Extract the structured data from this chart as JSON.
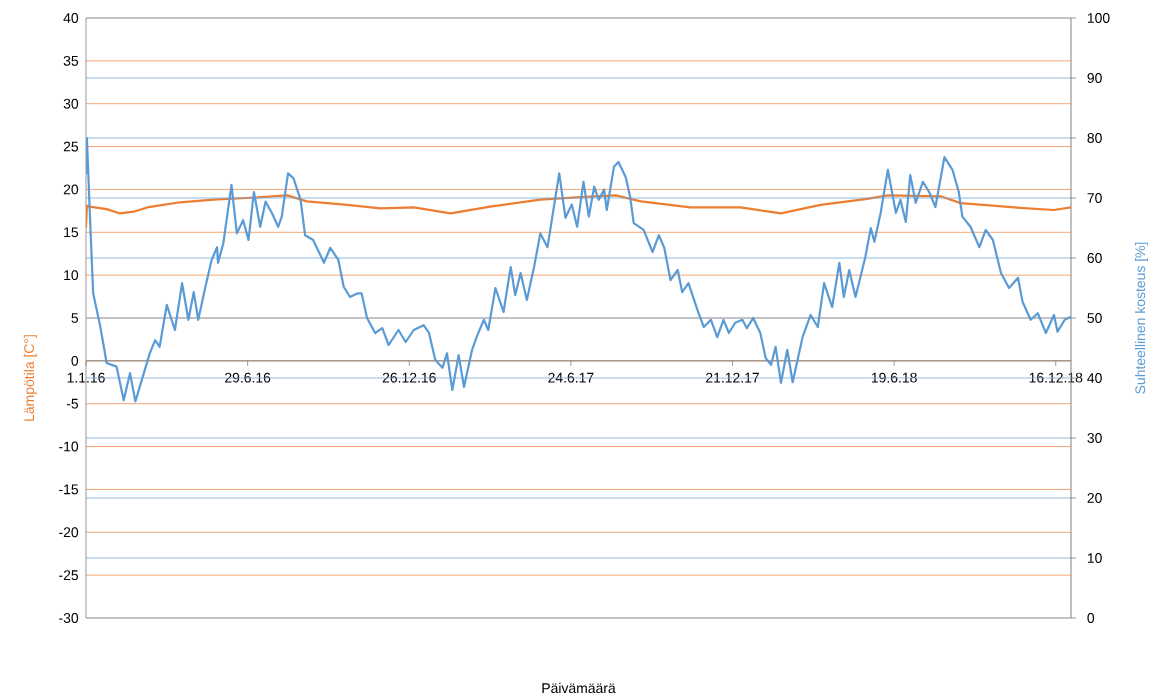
{
  "chart_data": {
    "type": "line",
    "xlabel": "Päivämäärä",
    "ylabel": "Lämpötila [C°]",
    "y2label": "Suhteellinen kosteus [%]",
    "xlim": [
      "2016-01-01",
      "2019-01-02"
    ],
    "xticks": [
      {
        "value": "2016-01-01",
        "label": "1.1.16"
      },
      {
        "value": "2016-06-29",
        "label": "29.6.16"
      },
      {
        "value": "2016-12-26",
        "label": "26.12.16"
      },
      {
        "value": "2017-06-24",
        "label": "24.6.17"
      },
      {
        "value": "2017-12-21",
        "label": "21.12.17"
      },
      {
        "value": "2018-06-19",
        "label": "19.6.18"
      },
      {
        "value": "2018-12-16",
        "label": "16.12.18"
      }
    ],
    "ylim": [
      -30,
      40
    ],
    "yticks": [
      -30,
      -25,
      -20,
      -15,
      -10,
      -5,
      0,
      5,
      10,
      15,
      20,
      25,
      30,
      35,
      40
    ],
    "y2lim": [
      0,
      100
    ],
    "y2ticks": [
      0,
      10,
      20,
      30,
      40,
      50,
      60,
      70,
      80,
      90,
      100
    ],
    "grid": true,
    "series": [
      {
        "color": "#ed7d31",
        "x": [
          "2016-01-01",
          "2016-01-02",
          "2016-01-05",
          "2016-01-24",
          "2016-02-08",
          "2016-02-23",
          "2016-03-09",
          "2016-04-15",
          "2016-05-22",
          "2016-06-28",
          "2016-08-12",
          "2016-09-03",
          "2016-10-18",
          "2016-11-24",
          "2016-12-31",
          "2017-02-10",
          "2017-03-26",
          "2017-05-21",
          "2017-07-05",
          "2017-08-13",
          "2017-09-10",
          "2017-11-04",
          "2017-12-30",
          "2018-02-13",
          "2018-03-29",
          "2018-05-20",
          "2018-06-12",
          "2018-08-10",
          "2018-09-01",
          "2018-10-31",
          "2018-12-14",
          "2019-01-02"
        ],
        "values": [
          15.5,
          18.1,
          18.0,
          17.7,
          17.2,
          17.4,
          17.9,
          18.5,
          18.8,
          19.0,
          19.3,
          18.6,
          18.2,
          17.8,
          17.9,
          17.2,
          18.0,
          18.8,
          19.1,
          19.3,
          18.6,
          17.9,
          17.9,
          17.2,
          18.2,
          18.9,
          19.3,
          19.2,
          18.4,
          17.9,
          17.6,
          17.9
        ]
      },
      {
        "color": "#5b9bd5",
        "axis": "y2",
        "x": [
          "2016-01-01",
          "2016-01-02",
          "2016-01-06",
          "2016-01-09",
          "2016-01-17",
          "2016-01-24",
          "2016-02-04",
          "2016-02-12",
          "2016-02-19",
          "2016-02-25",
          "2016-03-12",
          "2016-03-18",
          "2016-03-23",
          "2016-03-31",
          "2016-04-09",
          "2016-04-17",
          "2016-04-24",
          "2016-04-30",
          "2016-05-05",
          "2016-05-13",
          "2016-05-20",
          "2016-05-26",
          "2016-05-27",
          "2016-06-02",
          "2016-06-11",
          "2016-06-17",
          "2016-06-24",
          "2016-06-30",
          "2016-07-06",
          "2016-07-13",
          "2016-07-19",
          "2016-07-26",
          "2016-08-02",
          "2016-08-06",
          "2016-08-13",
          "2016-08-19",
          "2016-08-27",
          "2016-09-01",
          "2016-09-10",
          "2016-09-22",
          "2016-09-29",
          "2016-10-08",
          "2016-10-14",
          "2016-10-21",
          "2016-10-29",
          "2016-11-03",
          "2016-11-09",
          "2016-11-18",
          "2016-11-26",
          "2016-12-03",
          "2016-12-14",
          "2016-12-22",
          "2016-12-31",
          "2017-01-11",
          "2017-01-17",
          "2017-01-24",
          "2017-02-01",
          "2017-02-06",
          "2017-02-12",
          "2017-02-19",
          "2017-02-25",
          "2017-03-06",
          "2017-03-11",
          "2017-03-19",
          "2017-03-24",
          "2017-04-01",
          "2017-04-10",
          "2017-04-18",
          "2017-04-23",
          "2017-04-29",
          "2017-05-06",
          "2017-05-14",
          "2017-05-21",
          "2017-05-29",
          "2017-06-11",
          "2017-06-18",
          "2017-06-25",
          "2017-07-01",
          "2017-07-08",
          "2017-07-14",
          "2017-07-20",
          "2017-07-25",
          "2017-07-31",
          "2017-08-03",
          "2017-08-11",
          "2017-08-16",
          "2017-08-24",
          "2017-08-29",
          "2017-09-02",
          "2017-09-13",
          "2017-09-23",
          "2017-09-30",
          "2017-10-06",
          "2017-10-13",
          "2017-10-21",
          "2017-10-26",
          "2017-11-02",
          "2017-11-12",
          "2017-11-19",
          "2017-11-27",
          "2017-12-04",
          "2017-12-11",
          "2017-12-17",
          "2017-12-24",
          "2018-01-01",
          "2018-01-06",
          "2018-01-13",
          "2018-01-21",
          "2018-01-27",
          "2018-02-02",
          "2018-02-07",
          "2018-02-13",
          "2018-02-20",
          "2018-02-26",
          "2018-03-09",
          "2018-03-18",
          "2018-03-26",
          "2018-04-02",
          "2018-04-11",
          "2018-04-19",
          "2018-04-24",
          "2018-04-30",
          "2018-05-07",
          "2018-05-18",
          "2018-05-24",
          "2018-05-28",
          "2018-06-04",
          "2018-06-12",
          "2018-06-21",
          "2018-06-26",
          "2018-07-02",
          "2018-07-07",
          "2018-07-13",
          "2018-07-21",
          "2018-07-28",
          "2018-08-04",
          "2018-08-14",
          "2018-08-23",
          "2018-08-30",
          "2018-09-03",
          "2018-09-12",
          "2018-09-22",
          "2018-09-29",
          "2018-10-07",
          "2018-10-16",
          "2018-10-25",
          "2018-11-04",
          "2018-11-09",
          "2018-11-18",
          "2018-11-26",
          "2018-12-05",
          "2018-12-14",
          "2018-12-18",
          "2018-12-26",
          "2019-01-02"
        ],
        "values": [
          74,
          80,
          64.7,
          54.1,
          48.5,
          42.5,
          41.9,
          36.3,
          40.8,
          36.1,
          44.1,
          46.3,
          45.2,
          52.2,
          48,
          55.8,
          49.7,
          54.3,
          49.7,
          55.2,
          59.7,
          61.8,
          59.2,
          62.5,
          72.2,
          64.1,
          66.3,
          63,
          71,
          65.2,
          69.4,
          67.5,
          65.2,
          66.9,
          74.1,
          73.3,
          69.7,
          63.8,
          63,
          59.2,
          61.7,
          59.7,
          55.2,
          53.5,
          54.1,
          54.1,
          50,
          47.5,
          48.3,
          45.5,
          48,
          46,
          48,
          48.8,
          47.5,
          43,
          41.7,
          44.1,
          38,
          43.8,
          38.5,
          44.7,
          46.8,
          49.7,
          48,
          55,
          51,
          58.5,
          53.8,
          57.5,
          53,
          58.5,
          64.1,
          61.8,
          74.1,
          66.7,
          68.9,
          65.2,
          72.7,
          66.9,
          71.9,
          69.7,
          71.4,
          68,
          75.2,
          76,
          73.5,
          70.2,
          65.8,
          64.7,
          61,
          63.8,
          61.7,
          56.3,
          58,
          54.3,
          55.8,
          51.3,
          48.5,
          49.7,
          46.8,
          49.7,
          47.5,
          49.2,
          49.7,
          48.3,
          50,
          47.5,
          43.3,
          42.2,
          45.2,
          39.2,
          44.7,
          39.3,
          46.8,
          50.5,
          48.5,
          55.8,
          51.8,
          59.2,
          53.5,
          58,
          53.5,
          60.2,
          65,
          62.7,
          67.5,
          74.7,
          67.5,
          69.7,
          66,
          73.8,
          69.2,
          72.7,
          71,
          68.5,
          76.8,
          74.7,
          71,
          66.9,
          65.2,
          61.8,
          64.7,
          63,
          57.5,
          55,
          56.7,
          52.7,
          49.7,
          50.8,
          47.5,
          50.5,
          47.7,
          49.7,
          50.2
        ]
      }
    ]
  }
}
